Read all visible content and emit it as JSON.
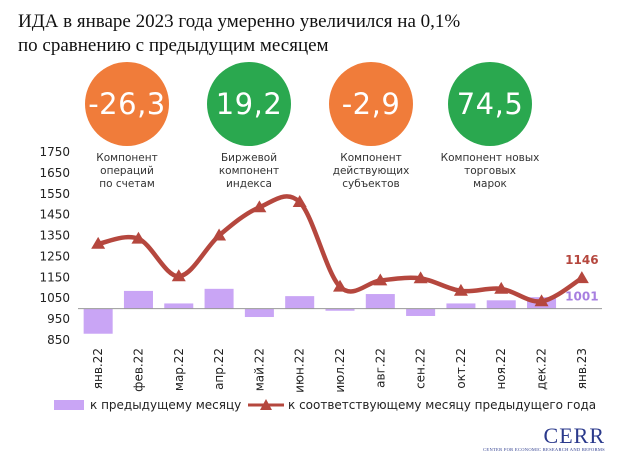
{
  "title": {
    "line1": "ИДА в январе 2023 года умеренно увеличился на 0,1%",
    "line2": "по сравнению с предыдущим месяцем"
  },
  "kpis": [
    {
      "value": "-26,3",
      "label_lines": [
        "Компонент",
        "операций",
        "по счетам"
      ],
      "color": "#f07c3a"
    },
    {
      "value": "19,2",
      "label_lines": [
        "Биржевой",
        "компонент",
        "индекса"
      ],
      "color": "#2aa84f"
    },
    {
      "value": "-2,9",
      "label_lines": [
        "Компонент",
        "действующих",
        "субъектов"
      ],
      "color": "#f07c3a"
    },
    {
      "value": "74,5",
      "label_lines": [
        "Компонент новых",
        "торговых",
        "марок"
      ],
      "color": "#2aa84f"
    }
  ],
  "chart_data": {
    "type": "bar",
    "categories": [
      "янв.22",
      "фев.22",
      "мар.22",
      "апр.22",
      "май.22",
      "июн.22",
      "июл.22",
      "авг.22",
      "сен.22",
      "окт.22",
      "ноя.22",
      "дек.22",
      "янв.23"
    ],
    "baseline": 1000,
    "ylim": [
      850,
      1750
    ],
    "yticks": [
      850,
      950,
      1050,
      1150,
      1250,
      1350,
      1450,
      1550,
      1650,
      1750
    ],
    "series": [
      {
        "name": "к предыдущему месяцу",
        "kind": "bar",
        "color": "#c9a5f5",
        "values": [
          880,
          1085,
          1025,
          1095,
          960,
          1060,
          990,
          1070,
          965,
          1025,
          1040,
          1055,
          1001
        ]
      },
      {
        "name": "к соответствующему месяцу предыдущего года",
        "kind": "line",
        "color": "#b5473e",
        "values": [
          1310,
          1335,
          1155,
          1350,
          1485,
          1510,
          1105,
          1135,
          1145,
          1085,
          1095,
          1035,
          1146
        ]
      }
    ],
    "annotations": [
      {
        "text": "1146",
        "series": 1,
        "index": 12,
        "color": "#b5473e"
      },
      {
        "text": "1001",
        "series": 0,
        "index": 12,
        "color": "#a77fe0"
      }
    ]
  },
  "logo": {
    "text": "CERR",
    "subtitle": "CENTER FOR ECONOMIC RESEARCH AND REFORMS"
  }
}
